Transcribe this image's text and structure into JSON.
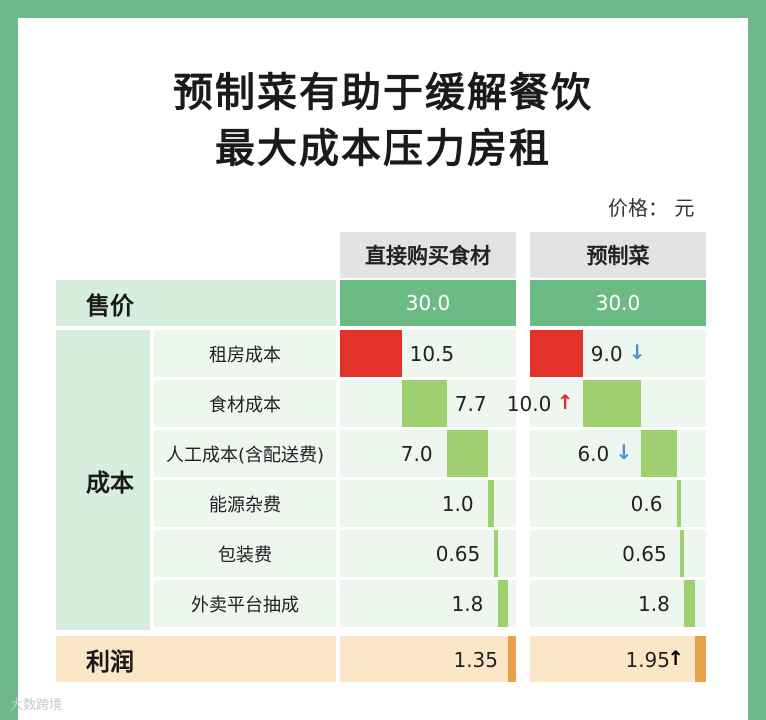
{
  "title_line1": "预制菜有助于缓解餐饮",
  "title_line2": "最大成本压力房租",
  "unit_label": "价格：  元",
  "columns": [
    "直接购买食材",
    "预制菜"
  ],
  "price_label": "售价",
  "cost_label": "成本",
  "profit_label": "利润",
  "watermark": "大数跨境",
  "colors": {
    "rent": "#e3322a",
    "cost_bar": "#9fd070",
    "price_bg": "#6dbb84",
    "profit_bar": "#e8a24a",
    "arrow_up": "#d0342c",
    "arrow_down": "#4a90d9"
  },
  "chart_data": {
    "type": "waterfall",
    "price": {
      "label": "售价",
      "values": [
        "30.0",
        "30.0"
      ]
    },
    "costs": [
      {
        "label": "租房成本",
        "values": [
          "10.5",
          "9.0"
        ],
        "change": [
          "",
          "down"
        ]
      },
      {
        "label": "食材成本",
        "values": [
          "7.7",
          "10.0"
        ],
        "change": [
          "",
          "up"
        ]
      },
      {
        "label": "人工成本(含配送费)",
        "values": [
          "7.0",
          "6.0"
        ],
        "change": [
          "",
          "down"
        ]
      },
      {
        "label": "能源杂费",
        "values": [
          "1.0",
          "0.6"
        ],
        "change": [
          "",
          ""
        ]
      },
      {
        "label": "包装费",
        "values": [
          "0.65",
          "0.65"
        ],
        "change": [
          "",
          ""
        ]
      },
      {
        "label": "外卖平台抽成",
        "values": [
          "1.8",
          "1.8"
        ],
        "change": [
          "",
          ""
        ]
      }
    ],
    "profit": {
      "label": "利润",
      "values": [
        "1.35",
        "1.95"
      ],
      "change": [
        "",
        "up"
      ]
    }
  }
}
